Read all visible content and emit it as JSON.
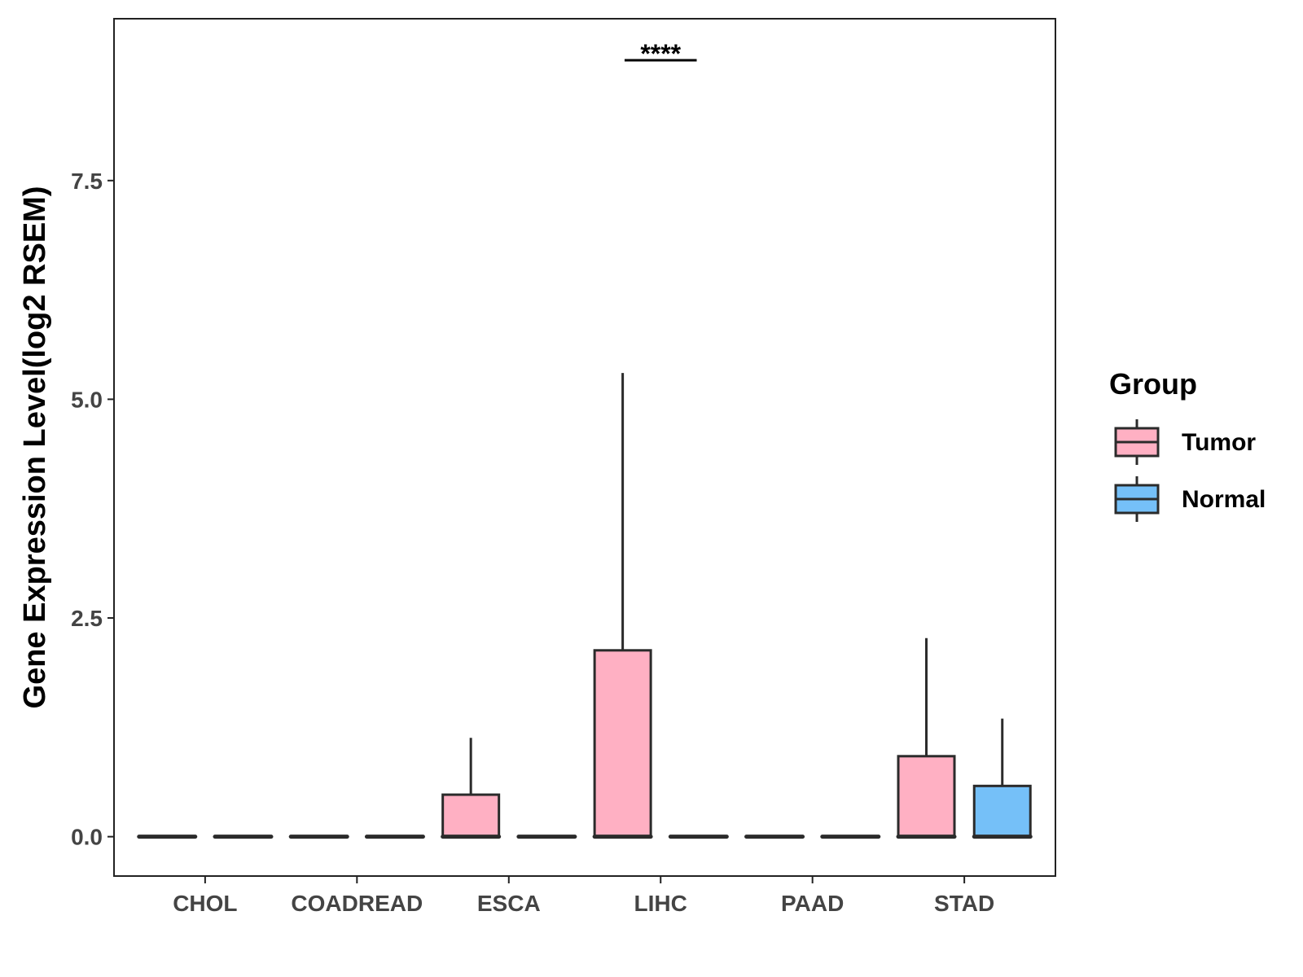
{
  "chart_data": {
    "type": "boxplot",
    "ylabel": "Gene Expression Level(log2 RSEM)",
    "xlabel": "",
    "ylim": [
      -0.45,
      9.35
    ],
    "yticks": [
      0.0,
      2.5,
      5.0,
      7.5
    ],
    "ytick_labels": [
      "0.0",
      "2.5",
      "5.0",
      "7.5"
    ],
    "grid": false,
    "legend_position": "right",
    "categories": [
      "CHOL",
      "COADREAD",
      "ESCA",
      "LIHC",
      "PAAD",
      "STAD"
    ],
    "legend": {
      "title": "Group",
      "entries": [
        {
          "name": "Tumor",
          "color": "#FFB0C3"
        },
        {
          "name": "Normal",
          "color": "#75C0F8"
        }
      ]
    },
    "series": [
      {
        "name": "Tumor",
        "color": "#FFB0C3",
        "boxes": [
          {
            "category": "CHOL",
            "min": 0,
            "q1": 0,
            "median": 0,
            "q3": 0,
            "max": 0
          },
          {
            "category": "COADREAD",
            "min": 0,
            "q1": 0,
            "median": 0,
            "q3": 0,
            "max": 0
          },
          {
            "category": "ESCA",
            "min": 0,
            "q1": 0,
            "median": 0,
            "q3": 0.48,
            "max": 1.13
          },
          {
            "category": "LIHC",
            "min": 0,
            "q1": 0,
            "median": 0,
            "q3": 2.13,
            "max": 5.3
          },
          {
            "category": "PAAD",
            "min": 0,
            "q1": 0,
            "median": 0,
            "q3": 0,
            "max": 0
          },
          {
            "category": "STAD",
            "min": 0,
            "q1": 0,
            "median": 0,
            "q3": 0.92,
            "max": 2.27
          }
        ]
      },
      {
        "name": "Normal",
        "color": "#75C0F8",
        "boxes": [
          {
            "category": "CHOL",
            "min": 0,
            "q1": 0,
            "median": 0,
            "q3": 0,
            "max": 0
          },
          {
            "category": "COADREAD",
            "min": 0,
            "q1": 0,
            "median": 0,
            "q3": 0,
            "max": 0
          },
          {
            "category": "ESCA",
            "min": 0,
            "q1": 0,
            "median": 0,
            "q3": 0,
            "max": 0
          },
          {
            "category": "LIHC",
            "min": 0,
            "q1": 0,
            "median": 0,
            "q3": 0,
            "max": 0
          },
          {
            "category": "PAAD",
            "min": 0,
            "q1": 0,
            "median": 0,
            "q3": 0,
            "max": 0
          },
          {
            "category": "STAD",
            "min": 0,
            "q1": 0,
            "median": 0,
            "q3": 0.58,
            "max": 1.35
          }
        ]
      }
    ],
    "annotations": [
      {
        "category": "LIHC",
        "text": "****"
      }
    ]
  }
}
